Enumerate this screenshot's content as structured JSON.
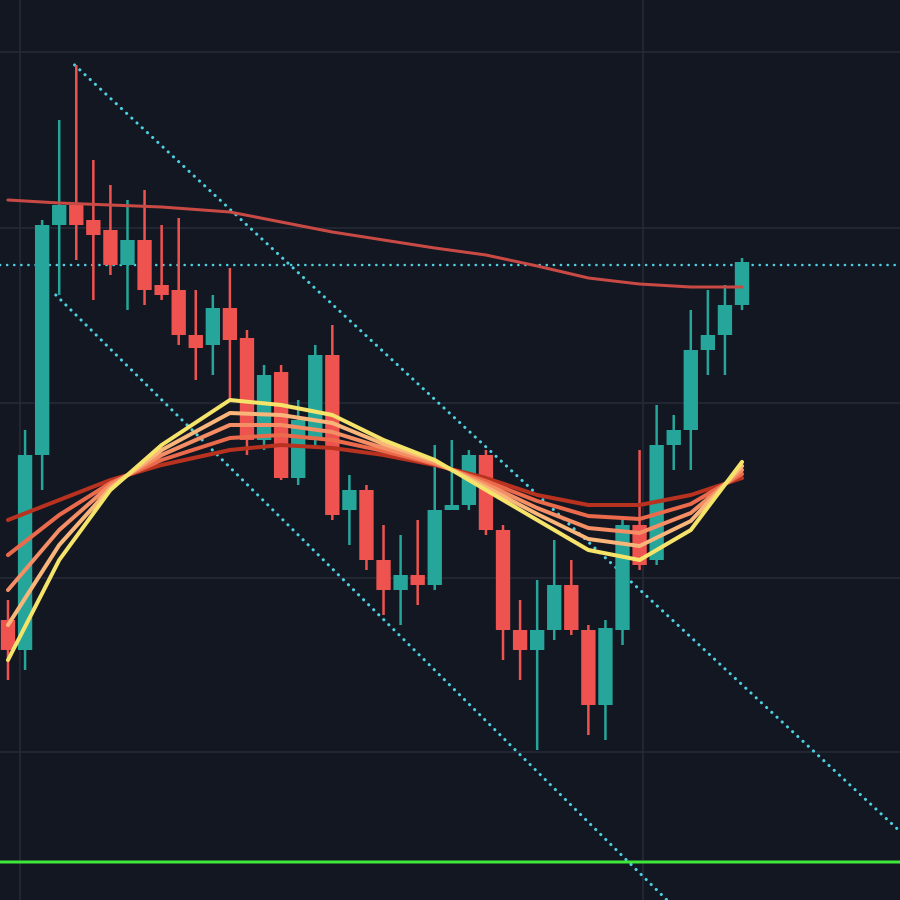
{
  "chart_data": {
    "type": "candlestick",
    "categories": [
      null,
      null,
      null,
      null,
      null,
      null,
      null,
      null,
      null,
      null,
      null,
      null,
      null,
      null,
      null,
      null,
      null,
      null,
      null,
      null,
      null,
      null,
      null,
      null,
      null,
      null,
      null,
      null,
      null,
      null,
      null,
      null,
      null,
      null,
      null,
      null,
      null,
      null,
      null,
      null,
      null,
      null,
      null,
      null
    ],
    "open": [
      280,
      250,
      445,
      675,
      695,
      680,
      670,
      635,
      660,
      615,
      610,
      565,
      555,
      592,
      562,
      460,
      528,
      422,
      460,
      545,
      390,
      410,
      340,
      310,
      325,
      315,
      390,
      395,
      445,
      370,
      270,
      250,
      270,
      315,
      270,
      195,
      270,
      375,
      340,
      455,
      470,
      550,
      565,
      595
    ],
    "high": [
      300,
      470,
      680,
      780,
      835,
      740,
      715,
      700,
      710,
      675,
      682,
      610,
      605,
      632,
      570,
      535,
      535,
      500,
      555,
      575,
      425,
      415,
      375,
      365,
      380,
      455,
      460,
      450,
      450,
      375,
      300,
      320,
      360,
      340,
      275,
      280,
      380,
      450,
      495,
      485,
      590,
      610,
      615,
      642
    ],
    "low": [
      220,
      230,
      410,
      605,
      640,
      600,
      625,
      590,
      595,
      600,
      555,
      520,
      525,
      500,
      445,
      450,
      420,
      415,
      455,
      380,
      355,
      330,
      285,
      275,
      295,
      310,
      390,
      390,
      365,
      240,
      220,
      150,
      260,
      265,
      165,
      160,
      255,
      330,
      335,
      430,
      430,
      525,
      525,
      590
    ],
    "close": [
      250,
      445,
      675,
      695,
      675,
      665,
      635,
      660,
      610,
      605,
      565,
      552,
      592,
      560,
      460,
      525,
      422,
      480,
      545,
      385,
      410,
      340,
      310,
      325,
      315,
      390,
      395,
      445,
      370,
      270,
      250,
      270,
      315,
      270,
      195,
      272,
      375,
      335,
      455,
      470,
      550,
      565,
      595,
      638
    ],
    "up_color": "#26a69a",
    "down_color": "#ef5350",
    "overlays": [
      {
        "color": "#c94a44",
        "x": [
          0,
          3,
          6,
          9,
          13,
          16,
          19,
          22,
          25,
          28,
          31,
          34,
          37,
          40,
          43
        ],
        "values": [
          700,
          697,
          695,
          693,
          688,
          678,
          668,
          660,
          652,
          645,
          634,
          622,
          616,
          613,
          613
        ]
      },
      {
        "color": "#b8321f",
        "x": [
          0,
          3,
          6,
          9,
          13,
          16,
          19,
          22,
          25,
          28,
          31,
          34,
          37,
          40,
          43
        ],
        "values": [
          380,
          400,
          420,
          435,
          450,
          455,
          452,
          445,
          435,
          422,
          405,
          395,
          395,
          405,
          422
        ]
      },
      {
        "color": "#ec6a4c",
        "x": [
          0,
          3,
          6,
          9,
          13,
          16,
          19,
          22,
          25,
          28,
          31,
          34,
          37,
          40,
          43
        ],
        "values": [
          345,
          385,
          417,
          440,
          462,
          465,
          460,
          449,
          436,
          419,
          399,
          384,
          381,
          396,
          426
        ]
      },
      {
        "color": "#f58e64",
        "x": [
          0,
          3,
          6,
          9,
          13,
          16,
          19,
          22,
          25,
          28,
          31,
          34,
          37,
          40,
          43
        ],
        "values": [
          310,
          370,
          415,
          445,
          475,
          475,
          468,
          452,
          437,
          416,
          392,
          372,
          367,
          387,
          430
        ]
      },
      {
        "color": "#f9b57a",
        "x": [
          0,
          3,
          6,
          9,
          13,
          16,
          19,
          22,
          25,
          28,
          31,
          34,
          37,
          40,
          43
        ],
        "values": [
          275,
          355,
          412,
          450,
          487,
          485,
          477,
          456,
          439,
          413,
          386,
          361,
          354,
          379,
          434
        ]
      },
      {
        "color": "#f6e46a",
        "x": [
          0,
          3,
          6,
          9,
          13,
          16,
          19,
          22,
          25,
          28,
          31,
          34,
          37,
          40,
          43
        ],
        "values": [
          240,
          340,
          410,
          455,
          500,
          495,
          485,
          460,
          440,
          410,
          380,
          350,
          340,
          370,
          438
        ]
      }
    ],
    "trendlines": [
      {
        "color": "#4dd0e1",
        "x": [
          3.9,
          52.8
        ],
        "values": [
          835,
          60
        ]
      },
      {
        "color": "#4dd0e1",
        "x": [
          2.8,
          38.6
        ],
        "values": [
          605,
          0
        ]
      }
    ],
    "levels": [
      {
        "color": "#4dd0e1",
        "value": 635,
        "style": "dotted"
      },
      {
        "color": "#3ee83a",
        "value": 38,
        "style": "solid"
      }
    ],
    "ylim": [
      0,
      900
    ],
    "yticks": [
      148,
      322,
      497,
      672,
      848
    ],
    "xticks": [
      0.7,
      37.2
    ],
    "grid": true
  }
}
